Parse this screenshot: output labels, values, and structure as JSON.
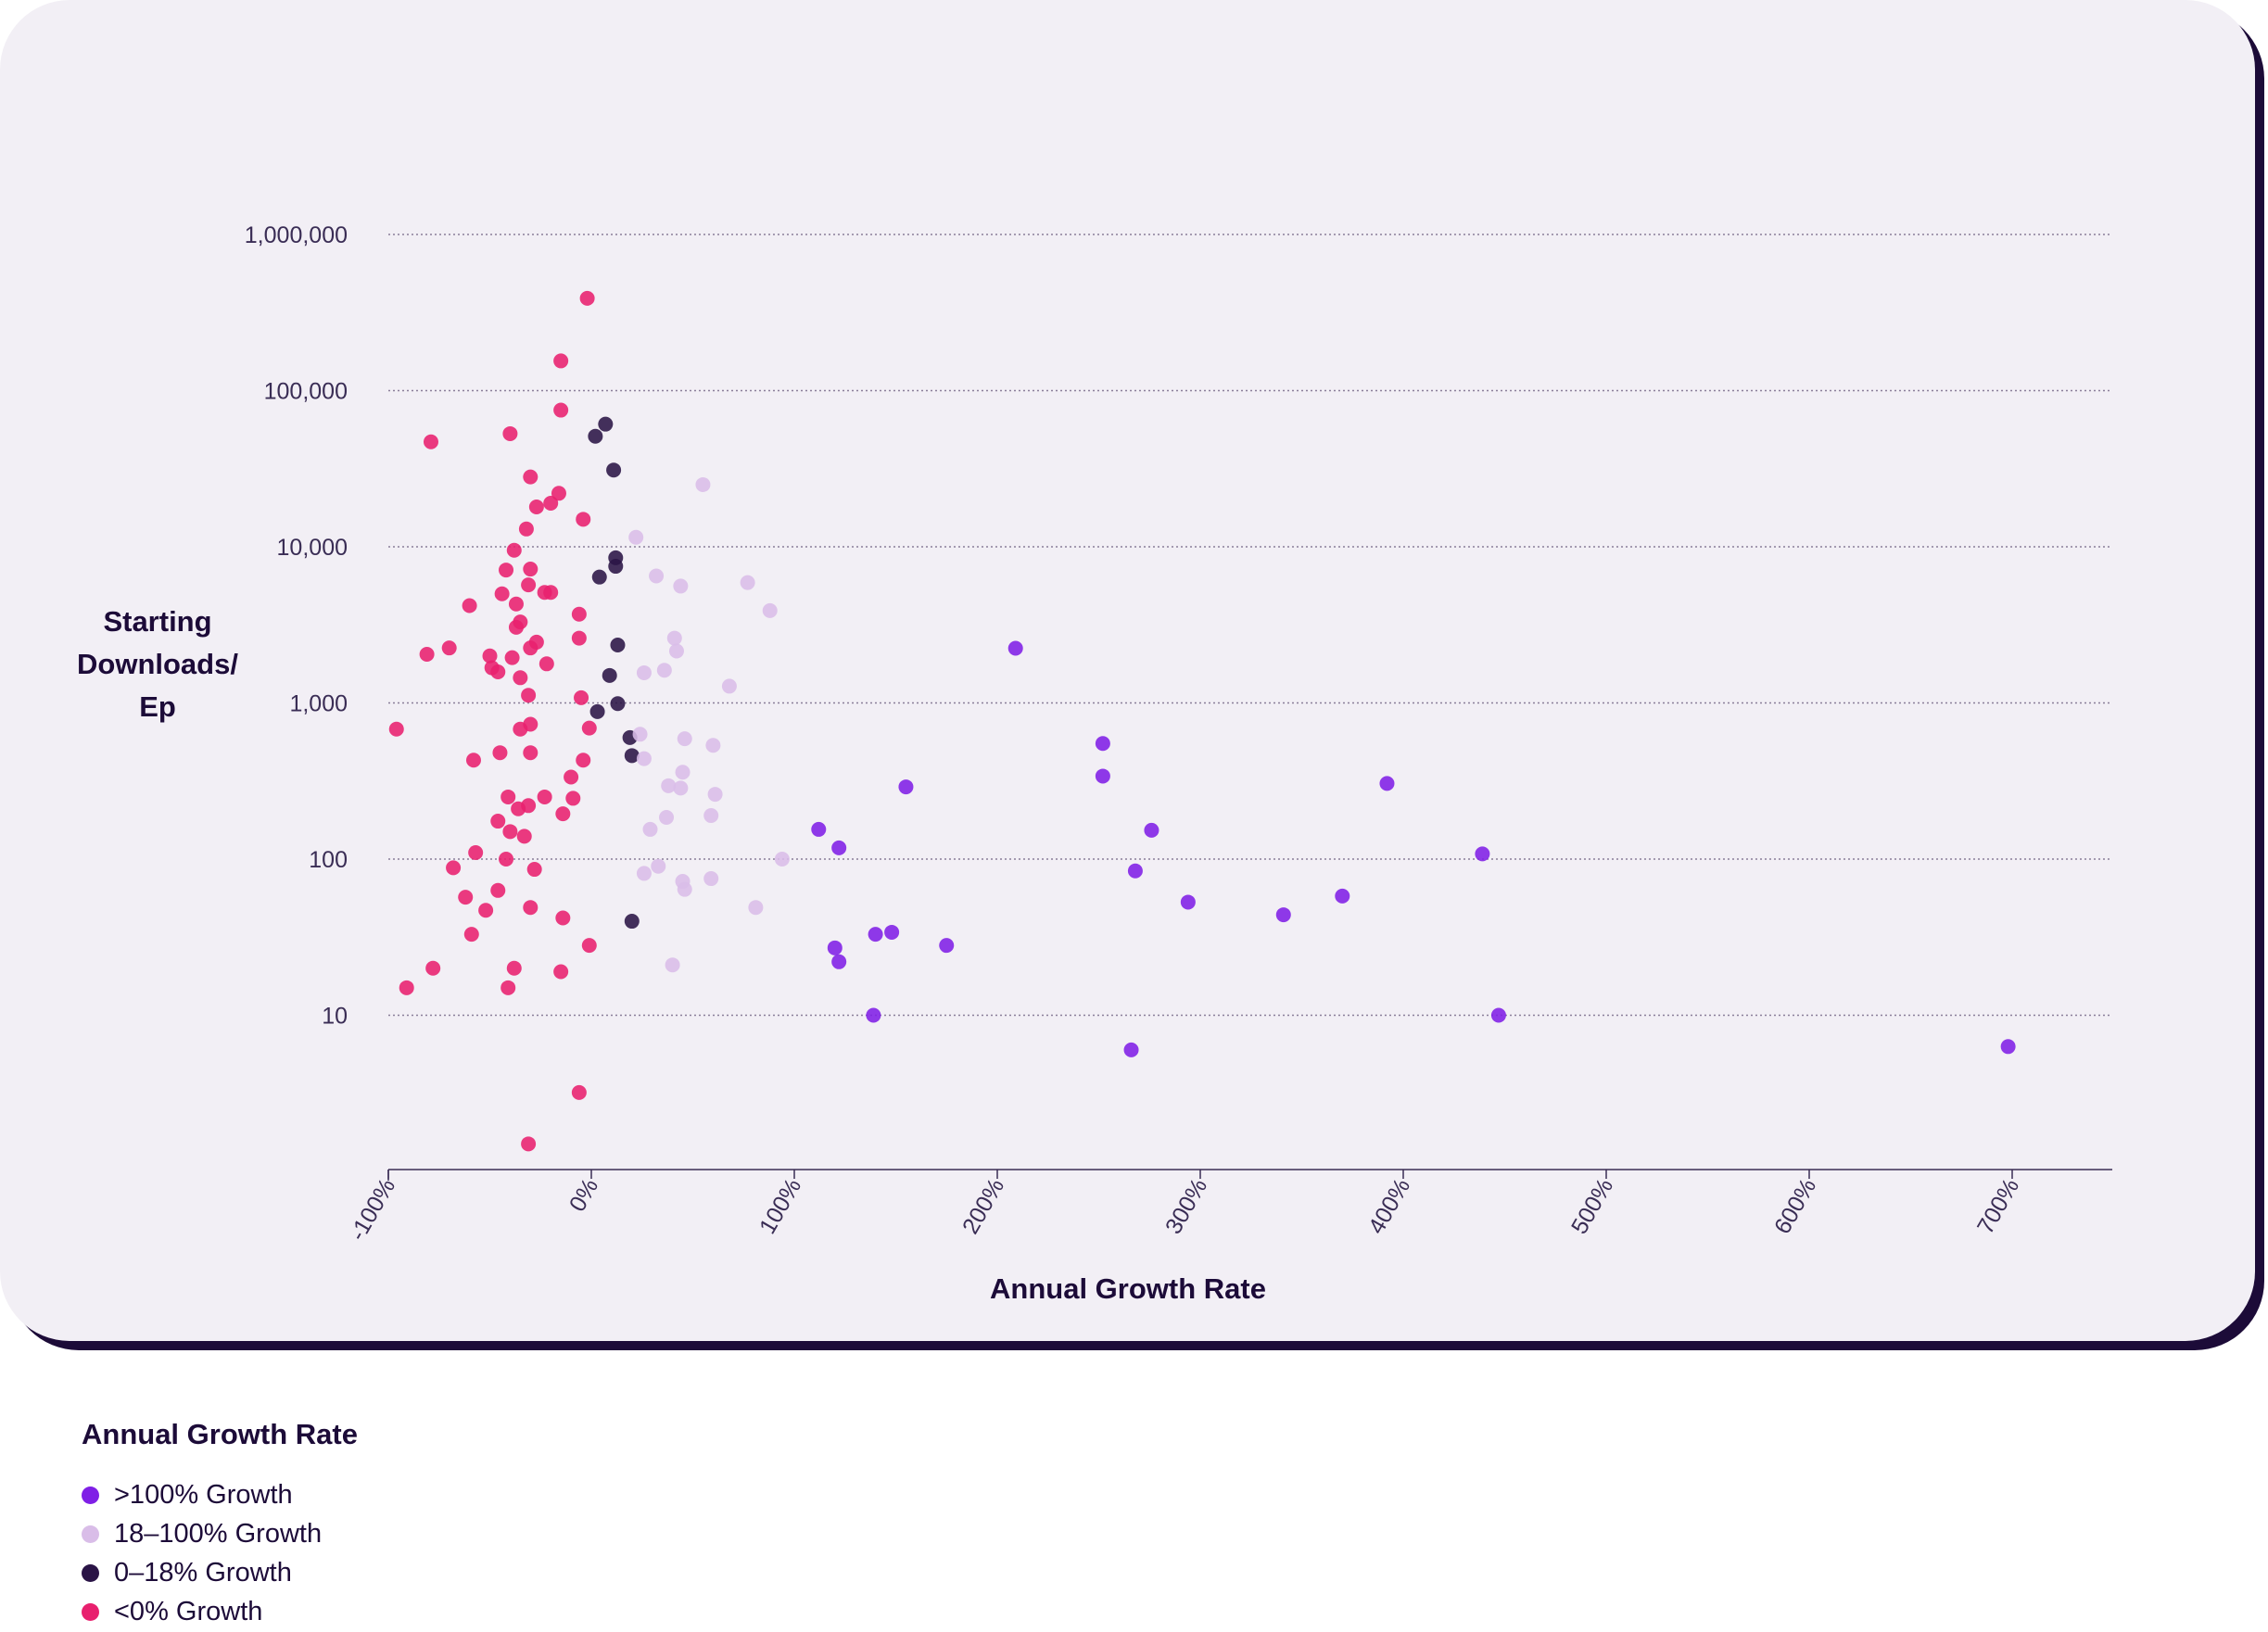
{
  "chart_data": {
    "type": "scatter",
    "title": "",
    "xlabel": "Annual Growth Rate",
    "ylabel_lines": [
      "Starting",
      "Downloads/",
      "Ep"
    ],
    "xscale": "linear",
    "yscale": "log",
    "xlim": [
      -100,
      750
    ],
    "ylim": [
      1,
      1000000
    ],
    "x_ticks": [
      -100,
      0,
      100,
      200,
      300,
      400,
      500,
      600,
      700
    ],
    "x_tick_labels": [
      "-100%",
      "0%",
      "100%",
      "200%",
      "300%",
      "400%",
      "500%",
      "600%",
      "700%"
    ],
    "y_ticks": [
      10,
      100,
      1000,
      10000,
      100000,
      1000000
    ],
    "y_tick_labels": [
      "10",
      "100",
      "1,000",
      "10,000",
      "100,000",
      "1,000,000"
    ],
    "grid": "horizontal dotted",
    "legend": {
      "title": "Annual Growth Rate",
      "placement": "bottom-left, below chart"
    },
    "series": [
      {
        "name": ">100% Growth",
        "color": "#7f1fe6",
        "points": [
          [
            209,
            2240
          ],
          [
            252,
            550
          ],
          [
            252,
            340
          ],
          [
            155,
            290
          ],
          [
            392,
            305
          ],
          [
            112,
            155
          ],
          [
            122,
            118
          ],
          [
            276,
            153
          ],
          [
            268,
            84
          ],
          [
            294,
            53
          ],
          [
            341,
            44
          ],
          [
            370,
            58
          ],
          [
            439,
            108
          ],
          [
            120,
            27
          ],
          [
            122,
            22
          ],
          [
            140,
            33
          ],
          [
            148,
            34
          ],
          [
            175,
            28
          ],
          [
            139,
            10
          ],
          [
            447,
            10
          ],
          [
            266,
            6
          ],
          [
            698,
            6.3
          ]
        ]
      },
      {
        "name": "18–100% Growth",
        "color": "#d9bde8",
        "points": [
          [
            55,
            25000
          ],
          [
            22,
            11500
          ],
          [
            32,
            6500
          ],
          [
            44,
            5600
          ],
          [
            77,
            5900
          ],
          [
            88,
            3900
          ],
          [
            41,
            2600
          ],
          [
            42,
            2150
          ],
          [
            36,
            1620
          ],
          [
            26,
            1560
          ],
          [
            68,
            1280
          ],
          [
            24,
            630
          ],
          [
            46,
            590
          ],
          [
            60,
            535
          ],
          [
            26,
            440
          ],
          [
            45,
            360
          ],
          [
            38,
            295
          ],
          [
            44,
            285
          ],
          [
            61,
            260
          ],
          [
            37,
            185
          ],
          [
            59,
            190
          ],
          [
            29,
            155
          ],
          [
            94,
            100
          ],
          [
            33,
            90
          ],
          [
            26,
            81
          ],
          [
            45,
            72
          ],
          [
            46,
            64
          ],
          [
            59,
            75
          ],
          [
            81,
            49
          ],
          [
            40,
            21
          ]
        ]
      },
      {
        "name": "0–18% Growth",
        "color": "#2a1446",
        "points": [
          [
            7,
            61000
          ],
          [
            2,
            51000
          ],
          [
            11,
            31000
          ],
          [
            12,
            8500
          ],
          [
            12,
            7500
          ],
          [
            4,
            6400
          ],
          [
            13,
            2350
          ],
          [
            9,
            1500
          ],
          [
            13,
            990
          ],
          [
            3,
            880
          ],
          [
            19,
            600
          ],
          [
            20,
            460
          ],
          [
            20,
            40
          ]
        ]
      },
      {
        "name": "<0% Growth",
        "color": "#e8206e",
        "points": [
          [
            -2,
            390000
          ],
          [
            -15,
            155000
          ],
          [
            -15,
            75000
          ],
          [
            -79,
            47000
          ],
          [
            -40,
            53000
          ],
          [
            -30,
            28000
          ],
          [
            -16,
            22000
          ],
          [
            -20,
            19000
          ],
          [
            -27,
            18000
          ],
          [
            -4,
            15000
          ],
          [
            -32,
            13000
          ],
          [
            -38,
            9500
          ],
          [
            -30,
            7200
          ],
          [
            -42,
            7100
          ],
          [
            -31,
            5700
          ],
          [
            -44,
            5000
          ],
          [
            -23,
            5100
          ],
          [
            -20,
            5100
          ],
          [
            -60,
            4200
          ],
          [
            -37,
            4300
          ],
          [
            -35,
            3300
          ],
          [
            -37,
            3050
          ],
          [
            -6,
            3700
          ],
          [
            -6,
            2600
          ],
          [
            -27,
            2450
          ],
          [
            -30,
            2250
          ],
          [
            -70,
            2250
          ],
          [
            -81,
            2050
          ],
          [
            -50,
            2000
          ],
          [
            -39,
            1950
          ],
          [
            -22,
            1780
          ],
          [
            -49,
            1680
          ],
          [
            -46,
            1580
          ],
          [
            -35,
            1450
          ],
          [
            -31,
            1120
          ],
          [
            -5,
            1080
          ],
          [
            -96,
            680
          ],
          [
            -35,
            680
          ],
          [
            -30,
            730
          ],
          [
            -1,
            690
          ],
          [
            -30,
            480
          ],
          [
            -45,
            480
          ],
          [
            -58,
            430
          ],
          [
            -4,
            430
          ],
          [
            -41,
            250
          ],
          [
            -23,
            250
          ],
          [
            -31,
            220
          ],
          [
            -36,
            210
          ],
          [
            -9,
            245
          ],
          [
            -10,
            335
          ],
          [
            -14,
            195
          ],
          [
            -46,
            175
          ],
          [
            -40,
            150
          ],
          [
            -33,
            140
          ],
          [
            -57,
            110
          ],
          [
            -68,
            88
          ],
          [
            -28,
            86
          ],
          [
            -42,
            100
          ],
          [
            -46,
            63
          ],
          [
            -62,
            57
          ],
          [
            -52,
            47
          ],
          [
            -30,
            49
          ],
          [
            -14,
            42
          ],
          [
            -59,
            33
          ],
          [
            -78,
            20
          ],
          [
            -38,
            20
          ],
          [
            -1,
            28
          ],
          [
            -15,
            19
          ],
          [
            -91,
            15
          ],
          [
            -41,
            15
          ],
          [
            -6,
            3.2
          ],
          [
            -31,
            1.5
          ]
        ]
      }
    ]
  }
}
